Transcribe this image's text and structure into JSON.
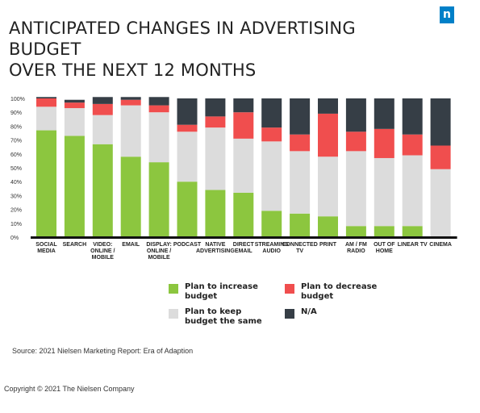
{
  "title": "ANTICIPATED CHANGES IN ADVERTISING BUDGET\nOVER THE NEXT 12 MONTHS",
  "logo": {
    "letter": "n",
    "color": "#0080c8"
  },
  "colors": {
    "increase": "#8cc63f",
    "same": "#dcdcdc",
    "decrease": "#f04e4e",
    "na": "#363e46",
    "axis": "#111111"
  },
  "legend": [
    {
      "key": "increase",
      "label": "Plan to increase\nbudget"
    },
    {
      "key": "decrease",
      "label": "Plan to decrease\nbudget"
    },
    {
      "key": "same",
      "label": "Plan to keep\nbudget the same"
    },
    {
      "key": "na",
      "label": "N/A"
    }
  ],
  "source": "Source: 2021 Nielsen Marketing Report: Era of Adaption",
  "copyright": "Copyright © 2021 The Nielsen Company",
  "chart_data": {
    "type": "bar",
    "stacked": true,
    "categories": [
      "SOCIAL\nMEDIA",
      "SEARCH",
      "VIDEO:\nONLINE /\nMOBILE",
      "EMAIL",
      "DISPLAY:\nONLINE /\nMOBILE",
      "PODCAST",
      "NATIVE\nADVERTISING",
      "DIRECT\nEMAIL",
      "STREAMING\nAUDIO",
      "CONNECTED\nTV",
      "PRINT",
      "AM / FM\nRADIO",
      "OUT OF\nHOME",
      "LINEAR TV",
      "CINEMA"
    ],
    "series": [
      {
        "name": "Plan to increase budget",
        "key": "increase",
        "values": [
          77,
          73,
          67,
          58,
          54,
          40,
          34,
          32,
          19,
          17,
          15,
          8,
          8,
          8,
          0
        ]
      },
      {
        "name": "Plan to keep budget the same",
        "key": "same",
        "values": [
          17,
          20,
          21,
          37,
          36,
          36,
          45,
          39,
          50,
          45,
          43,
          54,
          49,
          51,
          49
        ]
      },
      {
        "name": "Plan to decrease budget",
        "key": "decrease",
        "values": [
          6,
          4,
          8,
          4,
          5,
          5,
          8,
          19,
          10,
          12,
          31,
          14,
          21,
          15,
          17
        ]
      },
      {
        "name": "N/A",
        "key": "na",
        "values": [
          1,
          2,
          5,
          2,
          6,
          19,
          13,
          10,
          21,
          26,
          11,
          24,
          22,
          26,
          34
        ]
      }
    ],
    "yticks": [
      "0%",
      "10%",
      "20%",
      "30%",
      "40%",
      "50%",
      "60%",
      "70%",
      "80%",
      "90%",
      "100%"
    ],
    "ylim": [
      0,
      100
    ],
    "grid": false,
    "legend_position": "bottom-center"
  }
}
